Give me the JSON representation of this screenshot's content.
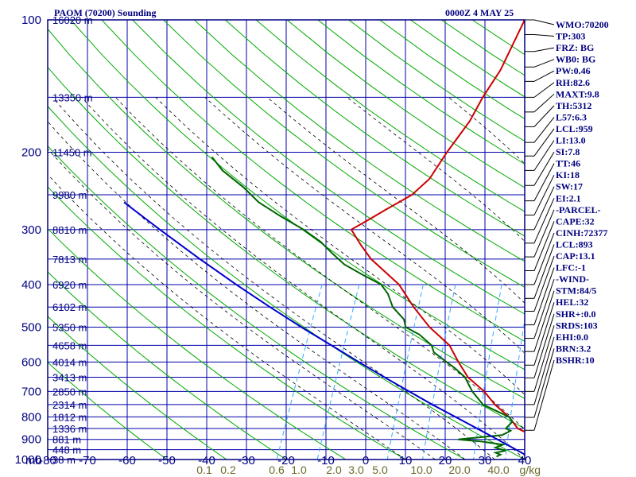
{
  "header": {
    "station": "PAOM (70200) Sounding",
    "valid_time": "0000Z  4 MAY 25"
  },
  "colors": {
    "frame": "#000080",
    "grid": "#0000aa",
    "dry_adiabat": "#00aa00",
    "moist_adiabat": "#000000",
    "mixing_ratio": "#33aaff",
    "temperature": "#cc0000",
    "dewpoint": "#006400",
    "parcel": "#0000cc",
    "mixing_ratio_text": "#6b6b2a"
  },
  "chart_data": {
    "type": "skew-t",
    "y_scale": "log-pressure",
    "ylim_mb": [
      1000,
      100
    ],
    "xlim_c": [
      -80,
      0
    ],
    "pressure_unit": "mb",
    "mixing_ratio_unit": "g/kg",
    "pressure_ticks": [
      "100",
      "200",
      "300",
      "400",
      "500",
      "600",
      "700",
      "800",
      "900",
      "1000"
    ],
    "temperature_ticks": [
      "-80",
      "-70",
      "-60",
      "-50",
      "-40",
      "-30",
      "-20",
      "-10",
      "0",
      "10",
      "20",
      "30",
      "40"
    ],
    "mixing_ratio_labels": [
      "0.1",
      "0.2",
      "0.6",
      "1.0",
      "2.0",
      "3.0",
      "5.0",
      "10.0",
      "20.0",
      "40.0"
    ],
    "height_labels": [
      {
        "p": 100,
        "text": "16020 m"
      },
      {
        "p": 150,
        "text": "13350 m"
      },
      {
        "p": 200,
        "text": "11450 m"
      },
      {
        "p": 250,
        "text": "9980 m"
      },
      {
        "p": 300,
        "text": "8810 m"
      },
      {
        "p": 350,
        "text": "7813 m"
      },
      {
        "p": 400,
        "text": "6920 m"
      },
      {
        "p": 450,
        "text": "6102 m"
      },
      {
        "p": 500,
        "text": "5350 m"
      },
      {
        "p": 550,
        "text": "4658 m"
      },
      {
        "p": 600,
        "text": "4014 m"
      },
      {
        "p": 650,
        "text": "3413 m"
      },
      {
        "p": 700,
        "text": "2850 m"
      },
      {
        "p": 750,
        "text": "2314 m"
      },
      {
        "p": 800,
        "text": "1812 m"
      },
      {
        "p": 850,
        "text": "1336 m"
      },
      {
        "p": 900,
        "text": "881 m"
      },
      {
        "p": 950,
        "text": "448 m"
      },
      {
        "p": 1000,
        "text": "38 m"
      }
    ],
    "series": [
      {
        "key": "temperature",
        "points": [
          [
            1000,
            0.5
          ],
          [
            975,
            -0.5
          ],
          [
            950,
            0
          ],
          [
            925,
            0
          ],
          [
            900,
            -0.5
          ],
          [
            880,
            -1
          ],
          [
            860,
            -3
          ],
          [
            850,
            -4
          ],
          [
            800,
            -6.5
          ],
          [
            750,
            -10
          ],
          [
            700,
            -13
          ],
          [
            650,
            -17
          ],
          [
            600,
            -20
          ],
          [
            550,
            -23
          ],
          [
            500,
            -28
          ],
          [
            450,
            -32.5
          ],
          [
            400,
            -37
          ],
          [
            350,
            -44
          ],
          [
            325,
            -47
          ],
          [
            300,
            -50
          ],
          [
            285,
            -48
          ],
          [
            270,
            -46
          ],
          [
            250,
            -43
          ],
          [
            230,
            -41.5
          ],
          [
            200,
            -41
          ],
          [
            170,
            -40
          ],
          [
            150,
            -40
          ],
          [
            130,
            -39.5
          ],
          [
            100,
            -40
          ]
        ]
      },
      {
        "key": "dewpoint",
        "points": [
          [
            985,
            -5
          ],
          [
            975,
            -4.5
          ],
          [
            965,
            -5.5
          ],
          [
            955,
            -4
          ],
          [
            940,
            -6
          ],
          [
            925,
            -5
          ],
          [
            910,
            -9
          ],
          [
            900,
            -13
          ],
          [
            880,
            -6
          ],
          [
            860,
            -5
          ],
          [
            850,
            -6
          ],
          [
            820,
            -5.5
          ],
          [
            800,
            -6.5
          ],
          [
            750,
            -12
          ],
          [
            700,
            -15
          ],
          [
            650,
            -17.5
          ],
          [
            620,
            -20
          ],
          [
            600,
            -22
          ],
          [
            570,
            -25
          ],
          [
            550,
            -26
          ],
          [
            520,
            -29
          ],
          [
            500,
            -32
          ],
          [
            480,
            -33
          ],
          [
            450,
            -36
          ],
          [
            420,
            -38
          ],
          [
            400,
            -40
          ],
          [
            380,
            -44
          ],
          [
            360,
            -48
          ],
          [
            340,
            -51
          ],
          [
            320,
            -54
          ],
          [
            300,
            -58
          ],
          [
            280,
            -63
          ],
          [
            260,
            -68
          ],
          [
            240,
            -72
          ],
          [
            220,
            -77
          ],
          [
            205,
            -80
          ]
        ]
      },
      {
        "key": "parcel",
        "points": [
          [
            1000,
            1.5
          ],
          [
            950,
            -2.3
          ],
          [
            900,
            -6.4
          ],
          [
            850,
            -10.8
          ],
          [
            800,
            -15.5
          ],
          [
            750,
            -20.5
          ],
          [
            700,
            -25.6
          ],
          [
            650,
            -31
          ],
          [
            600,
            -36.7
          ],
          [
            550,
            -42.8
          ],
          [
            500,
            -49.5
          ],
          [
            450,
            -56.6
          ],
          [
            400,
            -64.3
          ],
          [
            350,
            -72.7
          ],
          [
            300,
            -82.1
          ],
          [
            260,
            -90.6
          ]
        ]
      }
    ]
  },
  "indices": [
    {
      "p": 100,
      "text": "WMO:70200"
    },
    {
      "p": 108,
      "text": "TP:303"
    },
    {
      "p": 118,
      "text": "FRZ: BG"
    },
    {
      "p": 128,
      "text": "WB0: BG"
    },
    {
      "p": 138,
      "text": "PW:0.46"
    },
    {
      "p": 150,
      "text": "RH:82.6"
    },
    {
      "p": 162,
      "text": "MAXT:9.8"
    },
    {
      "p": 175,
      "text": "TH:5312"
    },
    {
      "p": 190,
      "text": "L57:6.3"
    },
    {
      "p": 204,
      "text": "LCL:959"
    },
    {
      "p": 220,
      "text": "LI:13.0"
    },
    {
      "p": 238,
      "text": "SI:7.8"
    },
    {
      "p": 258,
      "text": "TT:46"
    },
    {
      "p": 278,
      "text": "KI:18"
    },
    {
      "p": 300,
      "text": "SW:17"
    },
    {
      "p": 322,
      "text": "EI:2.1"
    },
    {
      "p": 346,
      "text": "-PARCEL-"
    },
    {
      "p": 372,
      "text": "CAPE:32"
    },
    {
      "p": 400,
      "text": "CINH:72377"
    },
    {
      "p": 430,
      "text": "LCL:893"
    },
    {
      "p": 460,
      "text": "CAP:13.1"
    },
    {
      "p": 494,
      "text": "LFC:-1"
    },
    {
      "p": 530,
      "text": "-WIND-"
    },
    {
      "p": 568,
      "text": "STM:84/5"
    },
    {
      "p": 610,
      "text": "HEL:32"
    },
    {
      "p": 652,
      "text": "SHR+:0.0"
    },
    {
      "p": 700,
      "text": "SRDS:103"
    },
    {
      "p": 750,
      "text": "EHI:0.0"
    },
    {
      "p": 802,
      "text": "BRN:3.2"
    },
    {
      "p": 858,
      "text": "BSHR:10"
    }
  ]
}
